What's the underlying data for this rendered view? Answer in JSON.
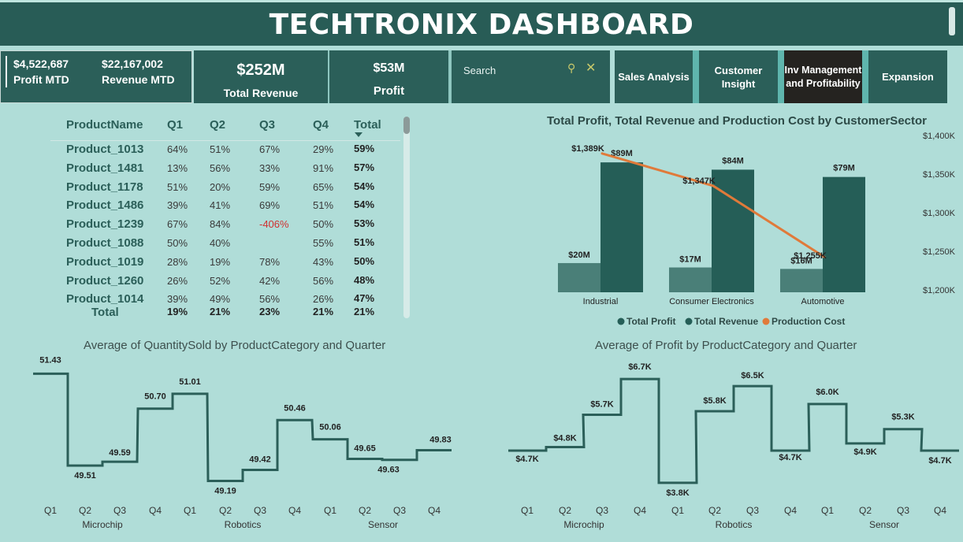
{
  "app_title": "TECHTRONIX DASHBOARD",
  "kpis": {
    "profit_mtd_value": "$4,522,687",
    "profit_mtd_label": "Profit MTD",
    "revenue_mtd_value": "$22,167,002",
    "revenue_mtd_label": "Revenue MTD",
    "total_revenue_value": "$252M",
    "total_revenue_label": "Total Revenue",
    "profit_value": "$53M",
    "profit_label": "Profit"
  },
  "search": {
    "placeholder": "Search"
  },
  "nav": {
    "sales_analysis": "Sales Analysis",
    "customer_insight": "Customer Insight",
    "inv_management": "Inv Management and Profitability",
    "expansion": "Expansion"
  },
  "table": {
    "headers": [
      "ProductName",
      "Q1",
      "Q2",
      "Q3",
      "Q4",
      "Total"
    ],
    "rows": [
      {
        "name": "Product_1013",
        "q1": "64%",
        "q2": "51%",
        "q3": "67%",
        "q4": "29%",
        "total": "59%"
      },
      {
        "name": "Product_1481",
        "q1": "13%",
        "q2": "56%",
        "q3": "33%",
        "q4": "91%",
        "total": "57%"
      },
      {
        "name": "Product_1178",
        "q1": "51%",
        "q2": "20%",
        "q3": "59%",
        "q4": "65%",
        "total": "54%"
      },
      {
        "name": "Product_1486",
        "q1": "39%",
        "q2": "41%",
        "q3": "69%",
        "q4": "51%",
        "total": "54%"
      },
      {
        "name": "Product_1239",
        "q1": "67%",
        "q2": "84%",
        "q3": "-406%",
        "q4": "50%",
        "total": "53%"
      },
      {
        "name": "Product_1088",
        "q1": "50%",
        "q2": "40%",
        "q3": "",
        "q4": "55%",
        "total": "51%"
      },
      {
        "name": "Product_1019",
        "q1": "28%",
        "q2": "19%",
        "q3": "78%",
        "q4": "43%",
        "total": "50%"
      },
      {
        "name": "Product_1260",
        "q1": "26%",
        "q2": "52%",
        "q3": "42%",
        "q4": "56%",
        "total": "48%"
      },
      {
        "name": "Product_1014",
        "q1": "39%",
        "q2": "49%",
        "q3": "56%",
        "q4": "26%",
        "total": "47%"
      }
    ],
    "total_row": {
      "name": "Total",
      "q1": "19%",
      "q2": "21%",
      "q3": "23%",
      "q4": "21%",
      "total": "21%"
    }
  },
  "colors": {
    "header_bg": "#285c56",
    "card_bg": "#2b5f59",
    "page_bg": "#b0ddd8",
    "profit_bar": "#4a7f78",
    "revenue_bar": "#255e57",
    "production_line": "#e07a3a",
    "step_line": "#2b5f59",
    "negative": "#d03030"
  },
  "chart_data": [
    {
      "type": "bar",
      "title": "Total Profit, Total Revenue and Production Cost by CustomerSector",
      "categories": [
        "Industrial",
        "Consumer Electronics",
        "Automotive"
      ],
      "series": [
        {
          "name": "Total Profit",
          "values": [
            20,
            17,
            16
          ],
          "labels": [
            "$20M",
            "$17M",
            "$16M"
          ]
        },
        {
          "name": "Total Revenue",
          "values": [
            89,
            84,
            79
          ],
          "labels": [
            "$89M",
            "$84M",
            "$79M"
          ]
        },
        {
          "name": "Production Cost",
          "type": "line",
          "axis": "right",
          "values": [
            1389,
            1347,
            1255
          ],
          "labels": [
            "$1,389K",
            "$1,347K",
            "$1,255K"
          ]
        }
      ],
      "right_axis_ticks": [
        "$1,400K",
        "$1,350K",
        "$1,300K",
        "$1,250K",
        "$1,200K"
      ],
      "right_ylim": [
        1200,
        1400
      ],
      "bar_ylim": [
        0,
        95
      ],
      "legend": [
        "Total Profit",
        "Total Revenue",
        "Production Cost"
      ],
      "legend_position": "bottom"
    },
    {
      "type": "line",
      "style": "step",
      "title": "Average of QuantitySold by ProductCategory and Quarter",
      "quarters": [
        "Q1",
        "Q2",
        "Q3",
        "Q4",
        "Q1",
        "Q2",
        "Q3",
        "Q4",
        "Q1",
        "Q2",
        "Q3",
        "Q4"
      ],
      "groups": [
        "Microchip",
        "Robotics",
        "Sensor"
      ],
      "values": [
        51.43,
        49.51,
        49.59,
        50.7,
        51.01,
        49.19,
        49.42,
        50.46,
        50.06,
        49.65,
        49.63,
        49.83
      ],
      "labels": [
        "51.43",
        "49.51",
        "49.59",
        "50.70",
        "51.01",
        "49.19",
        "49.42",
        "50.46",
        "50.06",
        "49.65",
        "49.63",
        "49.83"
      ],
      "ylim": [
        49.0,
        51.6
      ]
    },
    {
      "type": "line",
      "style": "step",
      "title": "Average of Profit by ProductCategory and Quarter",
      "quarters": [
        "Q1",
        "Q2",
        "Q3",
        "Q4",
        "Q1",
        "Q2",
        "Q3",
        "Q4",
        "Q1",
        "Q2",
        "Q3",
        "Q4"
      ],
      "groups": [
        "Microchip",
        "Robotics",
        "Sensor"
      ],
      "values": [
        4.7,
        4.8,
        5.7,
        6.7,
        3.8,
        5.8,
        6.5,
        4.7,
        6.0,
        4.9,
        5.3,
        4.7
      ],
      "labels": [
        "$4.7K",
        "$4.8K",
        "$5.7K",
        "$6.7K",
        "$3.8K",
        "$5.8K",
        "$6.5K",
        "$4.7K",
        "$6.0K",
        "$4.9K",
        "$5.3K",
        "$4.7K"
      ],
      "ylim": [
        3.6,
        6.9
      ]
    }
  ]
}
